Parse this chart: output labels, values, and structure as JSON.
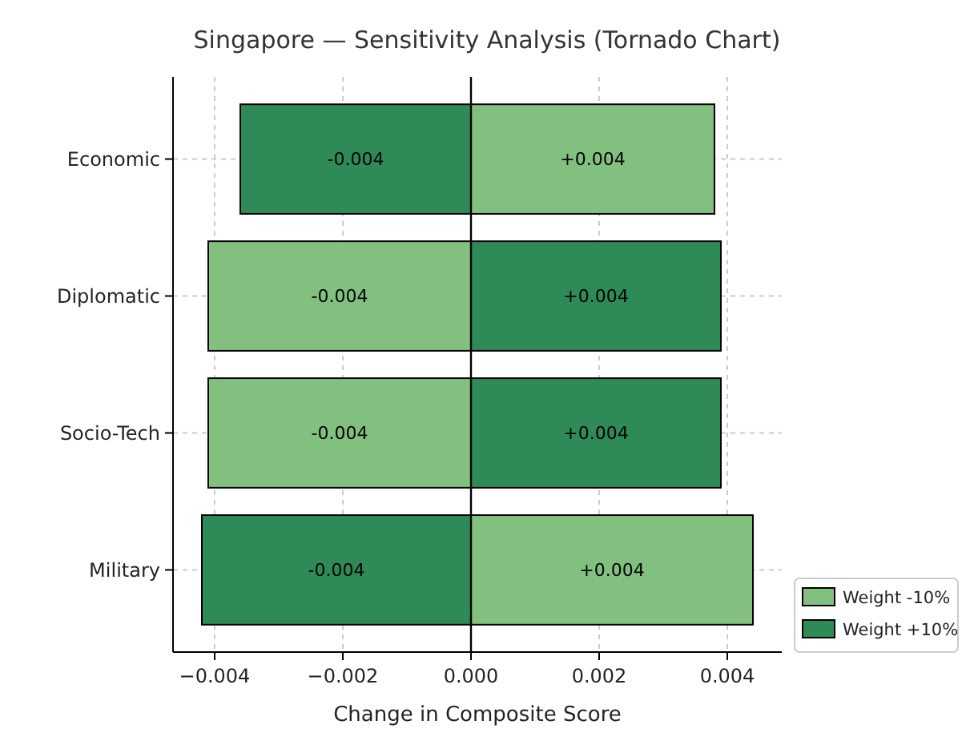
{
  "chart_data": {
    "type": "bar",
    "orientation": "horizontal",
    "title": "Singapore — Sensitivity Analysis (Tornado Chart)",
    "xlabel": "Change in Composite Score",
    "categories": [
      "Economic",
      "Diplomatic",
      "Socio-Tech",
      "Military"
    ],
    "series": [
      {
        "name": "Weight -10%",
        "color": "#82c07f",
        "values": [
          0.0038,
          -0.0041,
          -0.0041,
          0.0044
        ],
        "value_labels": [
          "+0.004",
          "-0.004",
          "-0.004",
          "+0.004"
        ]
      },
      {
        "name": "Weight +10%",
        "color": "#2e8b57",
        "values": [
          -0.0036,
          0.0039,
          0.0039,
          -0.0042
        ],
        "value_labels": [
          "-0.004",
          "+0.004",
          "+0.004",
          "-0.004"
        ]
      }
    ],
    "xlim": [
      -0.00465,
      0.00485
    ],
    "xticks": [
      {
        "value": -0.004,
        "label": "−0.004"
      },
      {
        "value": -0.002,
        "label": "−0.002"
      },
      {
        "value": 0,
        "label": "0.000"
      },
      {
        "value": 0.002,
        "label": "0.002"
      },
      {
        "value": 0.004,
        "label": "0.004"
      }
    ],
    "ref_lines": [
      {
        "axis": "x",
        "value": 0,
        "color": "#000000"
      }
    ],
    "grid": true,
    "legend": "bottom right",
    "stacked": true
  }
}
